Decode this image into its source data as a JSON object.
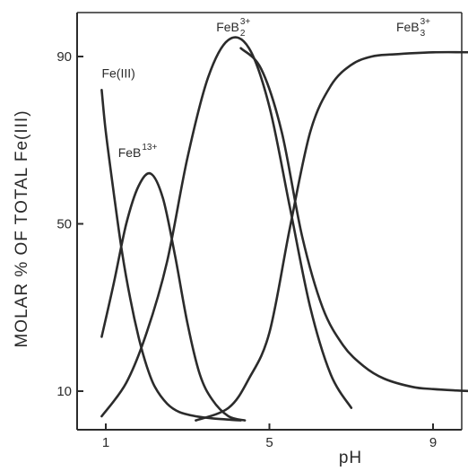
{
  "chart_data": {
    "type": "line",
    "title": "",
    "xlabel": "pH",
    "ylabel": "MOLAR % OF TOTAL Fe(III)",
    "xlim": [
      0.7,
      10.5
    ],
    "ylim": [
      3,
      99
    ],
    "x_ticks": [
      1,
      5,
      9
    ],
    "y_ticks": [
      10,
      50,
      90
    ],
    "x_tick_labels": [
      "1",
      "5",
      "9"
    ],
    "y_tick_labels": [
      "10",
      "50",
      "90"
    ],
    "grid": false,
    "legend": "none (curves labelled directly)",
    "line_color": "#2b2b2b",
    "series": [
      {
        "label": "Fe(III)",
        "x": [
          0.9,
          1.0,
          1.2,
          1.4,
          1.6,
          1.8,
          2.0,
          2.2,
          2.5,
          2.8,
          3.2,
          3.6,
          4.0,
          4.3
        ],
        "y": [
          82,
          72,
          57,
          43,
          32,
          23,
          16,
          11,
          7,
          5,
          4,
          3.5,
          3.2,
          3
        ]
      },
      {
        "label": "FeB13+",
        "label_main": "FeB",
        "label_sup": "13+",
        "x": [
          0.9,
          1.2,
          1.5,
          1.8,
          2.1,
          2.4,
          2.7,
          3.0,
          3.3,
          3.6,
          4.0,
          4.4
        ],
        "y": [
          23,
          36,
          50,
          59,
          62,
          56,
          42,
          26,
          14,
          8,
          4,
          3
        ]
      },
      {
        "label": "FeB23+",
        "label_main": "FeB",
        "label_sub": "2",
        "label_sup": "3+",
        "x": [
          0.9,
          1.5,
          2.0,
          2.5,
          3.0,
          3.5,
          4.0,
          4.5,
          5.0,
          5.5,
          6.0,
          6.5,
          7.0
        ],
        "y": [
          4,
          12,
          24,
          41,
          66,
          85,
          94,
          92,
          78,
          54,
          30,
          14,
          6
        ]
      },
      {
        "label": "FeB33+",
        "label_main": "FeB",
        "label_sub": "3",
        "label_sup": "3+",
        "x": [
          3.2,
          4.0,
          4.5,
          5.0,
          5.5,
          6.0,
          6.5,
          7.0,
          7.5,
          8.0,
          9.0,
          10.0
        ],
        "y": [
          3,
          6,
          13,
          24,
          49,
          72,
          83,
          88,
          90,
          90.5,
          91,
          91
        ]
      },
      {
        "label": "",
        "x": [
          4.3,
          4.8,
          5.3,
          5.8,
          6.3,
          6.8,
          7.3,
          7.8,
          8.5,
          9.0,
          9.5,
          10.0,
          10.5
        ],
        "y": [
          92,
          87,
          72,
          47,
          30,
          21,
          16,
          13,
          11,
          10.5,
          10.2,
          10,
          10
        ]
      }
    ],
    "annotations": [
      {
        "text": "Fe(III)",
        "x": 0.9,
        "y": 85
      },
      {
        "text": "FeB13+",
        "x": 1.3,
        "y": 66
      },
      {
        "text": "FeB23+",
        "x": 3.7,
        "y": 96
      },
      {
        "text": "FeB33+",
        "x": 8.1,
        "y": 96
      }
    ]
  }
}
